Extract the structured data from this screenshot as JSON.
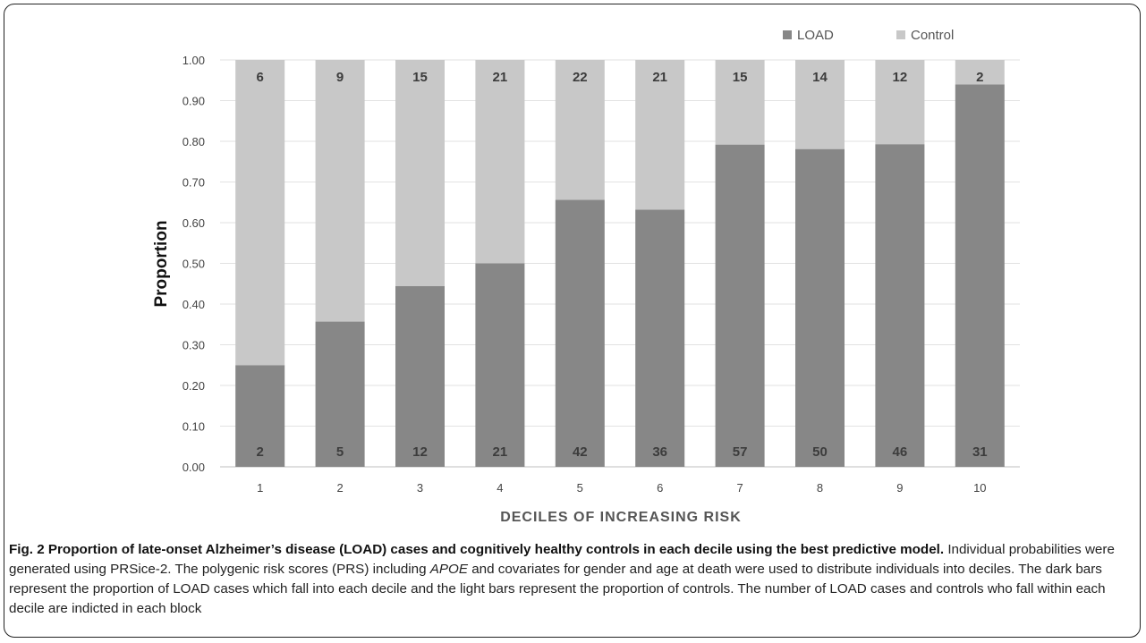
{
  "chart_data": {
    "type": "bar",
    "stacked": true,
    "categories": [
      "1",
      "2",
      "3",
      "4",
      "5",
      "6",
      "7",
      "8",
      "9",
      "10"
    ],
    "series": [
      {
        "name": "LOAD",
        "color": "#878787",
        "values": [
          0.25,
          0.357,
          0.444,
          0.5,
          0.656,
          0.632,
          0.792,
          0.781,
          0.793,
          0.94
        ],
        "counts": [
          "2",
          "5",
          "12",
          "21",
          "42",
          "36",
          "57",
          "50",
          "46",
          "31"
        ]
      },
      {
        "name": "Control",
        "color": "#c8c8c8",
        "values": [
          0.75,
          0.643,
          0.556,
          0.5,
          0.344,
          0.368,
          0.208,
          0.219,
          0.207,
          0.06
        ],
        "counts": [
          "6",
          "9",
          "15",
          "21",
          "22",
          "21",
          "15",
          "14",
          "12",
          "2"
        ]
      }
    ],
    "yticks": [
      "0.00",
      "0.10",
      "0.20",
      "0.30",
      "0.40",
      "0.50",
      "0.60",
      "0.70",
      "0.80",
      "0.90",
      "1.00"
    ],
    "ylim": [
      0,
      1
    ],
    "xlabel": "DECILES OF INCREASING RISK",
    "ylabel": "Proportion",
    "legend_position": "top-right",
    "grid": true
  },
  "caption": {
    "lead": "Fig. 2 Proportion of late-onset Alzheimer’s disease (LOAD) cases and cognitively healthy controls in each decile using the best predictive model.",
    "part1": " Individual probabilities were generated using PRSice-2. The polygenic risk scores (PRS) including ",
    "italic": "APOE",
    "part2": " and covariates for gender and age at death were used to distribute individuals into deciles. The dark bars represent the proportion of LOAD cases which fall into each decile and the light bars represent the proportion of controls. The number of LOAD cases and controls who fall within each decile are indicted in each block"
  }
}
